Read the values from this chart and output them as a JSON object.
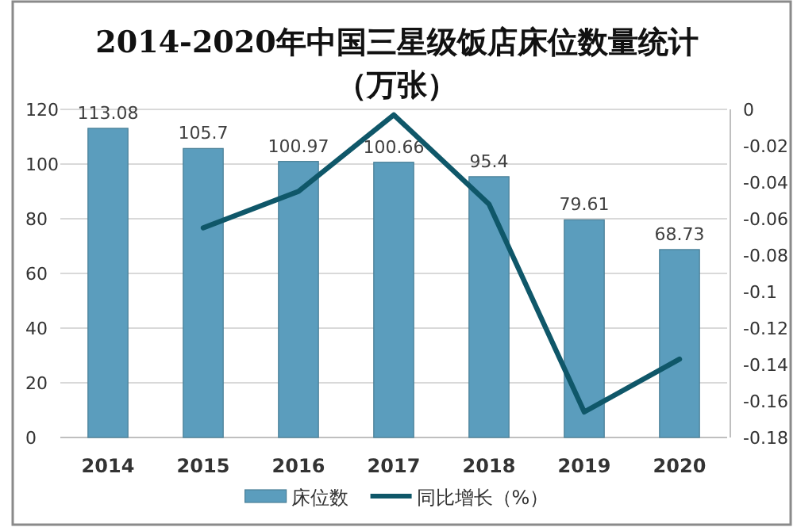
{
  "chart_data": {
    "type": "bar",
    "title": "2014-2020年中国三星级饭店床位数量统计（万张）",
    "categories": [
      "2014",
      "2015",
      "2016",
      "2017",
      "2018",
      "2019",
      "2020"
    ],
    "series": [
      {
        "name": "床位数",
        "color": "#5b9dbd",
        "values": [
          113.08,
          105.7,
          100.97,
          100.66,
          95.4,
          79.61,
          68.73
        ],
        "value_labels": [
          "113.08",
          "105.7",
          "100.97",
          "100.66",
          "95.4",
          "79.61",
          "68.73"
        ]
      },
      {
        "name": "同比增长（%）",
        "type": "line",
        "axis": "y2",
        "color": "#0f5769",
        "values": [
          null,
          -0.065,
          -0.045,
          -0.003,
          -0.052,
          -0.166,
          -0.137
        ]
      }
    ],
    "ylim": [
      0,
      120
    ],
    "yticks": [
      0,
      20,
      40,
      60,
      80,
      100,
      120
    ],
    "y2lim": [
      -0.18,
      0
    ],
    "y2ticks": [
      0,
      -0.02,
      -0.04,
      -0.06,
      -0.08,
      -0.1,
      -0.12,
      -0.14,
      -0.16,
      -0.18
    ],
    "grid": "y",
    "legend": "bottom"
  }
}
